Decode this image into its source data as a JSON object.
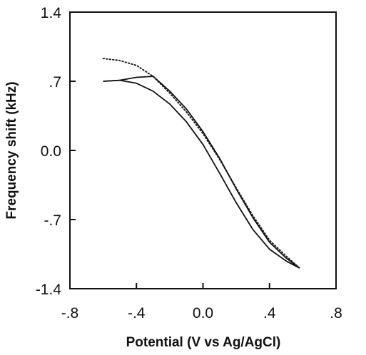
{
  "chart_data": {
    "type": "line",
    "title": "",
    "xlabel": "Potential (V vs Ag/AgCl)",
    "ylabel": "Frequency shift (kHz)",
    "xlim": [
      -0.8,
      0.8
    ],
    "ylim": [
      -1.4,
      1.4
    ],
    "x_ticks": [
      -0.8,
      -0.4,
      0.0,
      0.4,
      0.8
    ],
    "x_tick_labels": [
      "-.8",
      "-.4",
      "0.0",
      ".4",
      ".8"
    ],
    "y_ticks": [
      -1.4,
      -0.7,
      0.0,
      0.7,
      1.4
    ],
    "y_tick_labels": [
      "-1.4",
      "-.7",
      "0.0",
      ".7",
      "1.4"
    ],
    "grid": false,
    "legend": "none",
    "series": [
      {
        "style": "dotted",
        "color": "#222222",
        "x": [
          -0.6,
          -0.5,
          -0.4,
          -0.3,
          -0.2,
          -0.1,
          0.0,
          0.1,
          0.2,
          0.3,
          0.4,
          0.5,
          0.58
        ],
        "y": [
          0.93,
          0.91,
          0.86,
          0.75,
          0.58,
          0.39,
          0.17,
          -0.09,
          -0.38,
          -0.66,
          -0.91,
          -1.07,
          -1.19
        ]
      },
      {
        "style": "solid",
        "color": "#111111",
        "x": [
          -0.6,
          -0.5,
          -0.4,
          -0.3,
          -0.2,
          -0.1,
          0.0,
          0.1,
          0.2,
          0.3,
          0.4,
          0.5,
          0.58
        ],
        "y": [
          0.7,
          0.71,
          0.74,
          0.75,
          0.6,
          0.42,
          0.19,
          -0.08,
          -0.39,
          -0.68,
          -0.93,
          -1.09,
          -1.19
        ]
      },
      {
        "style": "solid",
        "color": "#111111",
        "x": [
          -0.6,
          -0.5,
          -0.4,
          -0.3,
          -0.2,
          -0.1,
          0.0,
          0.1,
          0.2,
          0.3,
          0.4,
          0.5,
          0.58
        ],
        "y": [
          0.7,
          0.71,
          0.68,
          0.6,
          0.47,
          0.29,
          0.06,
          -0.23,
          -0.53,
          -0.8,
          -1.0,
          -1.12,
          -1.19
        ]
      }
    ]
  }
}
